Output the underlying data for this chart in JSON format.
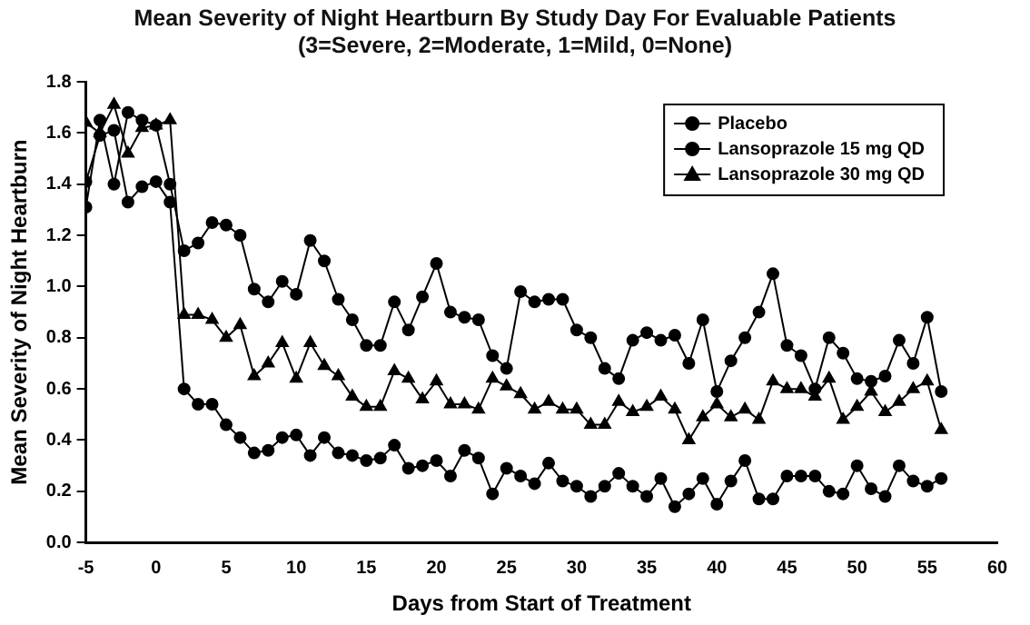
{
  "chart_data": {
    "type": "line",
    "title": "Mean Severity of Night Heartburn By Study Day For Evaluable Patients",
    "subtitle": "(3=Severe, 2=Moderate, 1=Mild, 0=None)",
    "xlabel": "Days from Start of Treatment",
    "ylabel": "Mean Severity of Night Heartburn",
    "x": [
      -5,
      -4,
      -3,
      -2,
      -1,
      0,
      1,
      2,
      3,
      4,
      5,
      6,
      7,
      8,
      9,
      10,
      11,
      12,
      13,
      14,
      15,
      16,
      17,
      18,
      19,
      20,
      21,
      22,
      23,
      24,
      25,
      26,
      27,
      28,
      29,
      30,
      31,
      32,
      33,
      34,
      35,
      36,
      37,
      38,
      39,
      40,
      41,
      42,
      43,
      44,
      45,
      46,
      47,
      48,
      49,
      50,
      51,
      52,
      53,
      54,
      55,
      56
    ],
    "series": [
      {
        "name": "Placebo",
        "color": "#000000",
        "marker": "circle",
        "values": [
          1.31,
          1.65,
          1.4,
          1.68,
          1.65,
          1.63,
          1.4,
          1.14,
          1.17,
          1.25,
          1.24,
          1.2,
          0.99,
          0.94,
          1.02,
          0.97,
          1.18,
          1.1,
          0.95,
          0.87,
          0.77,
          0.77,
          0.94,
          0.83,
          0.96,
          1.09,
          0.9,
          0.88,
          0.87,
          0.73,
          0.68,
          0.98,
          0.94,
          0.95,
          0.95,
          0.83,
          0.8,
          0.68,
          0.64,
          0.79,
          0.82,
          0.79,
          0.81,
          0.7,
          0.87,
          0.59,
          0.71,
          0.8,
          0.9,
          1.05,
          0.77,
          0.73,
          0.6,
          0.8,
          0.74,
          0.64,
          0.63,
          0.65,
          0.79,
          0.7,
          0.88,
          0.59
        ]
      },
      {
        "name": "Lansoprazole 15 mg QD",
        "color": "#000000",
        "marker": "circle",
        "values": [
          1.41,
          1.59,
          1.61,
          1.33,
          1.39,
          1.41,
          1.33,
          0.6,
          0.54,
          0.54,
          0.46,
          0.41,
          0.35,
          0.36,
          0.41,
          0.42,
          0.34,
          0.41,
          0.35,
          0.34,
          0.32,
          0.33,
          0.38,
          0.29,
          0.3,
          0.32,
          0.26,
          0.36,
          0.33,
          0.19,
          0.29,
          0.26,
          0.23,
          0.31,
          0.24,
          0.22,
          0.18,
          0.22,
          0.27,
          0.22,
          0.18,
          0.25,
          0.14,
          0.19,
          0.25,
          0.15,
          0.24,
          0.32,
          0.17,
          0.17,
          0.26,
          0.26,
          0.26,
          0.2,
          0.19,
          0.3,
          0.21,
          0.18,
          0.3,
          0.24,
          0.22,
          0.25
        ]
      },
      {
        "name": "Lansoprazole 30 mg QD",
        "color": "#000000",
        "marker": "triangle",
        "values": [
          1.64,
          1.6,
          1.71,
          1.52,
          1.62,
          1.63,
          1.65,
          0.89,
          0.89,
          0.87,
          0.8,
          0.85,
          0.65,
          0.7,
          0.78,
          0.64,
          0.78,
          0.69,
          0.65,
          0.57,
          0.53,
          0.53,
          0.67,
          0.64,
          0.56,
          0.63,
          0.54,
          0.54,
          0.52,
          0.64,
          0.61,
          0.58,
          0.52,
          0.55,
          0.52,
          0.52,
          0.46,
          0.46,
          0.55,
          0.51,
          0.53,
          0.57,
          0.52,
          0.4,
          0.49,
          0.54,
          0.49,
          0.52,
          0.48,
          0.63,
          0.6,
          0.6,
          0.57,
          0.64,
          0.48,
          0.53,
          0.59,
          0.51,
          0.55,
          0.6,
          0.63,
          0.44
        ]
      }
    ],
    "xlim": [
      -5,
      60
    ],
    "xticks": [
      -5,
      0,
      5,
      10,
      15,
      20,
      25,
      30,
      35,
      40,
      45,
      50,
      55,
      60
    ],
    "ylim": [
      0,
      1.8
    ],
    "yticks": [
      {
        "value": 0,
        "label": "0.0"
      },
      {
        "value": 0.2,
        "label": "0.2"
      },
      {
        "value": 0.4,
        "label": "0.4"
      },
      {
        "value": 0.6,
        "label": "0.6"
      },
      {
        "value": 0.8,
        "label": "0.8"
      },
      {
        "value": 1,
        "label": "1.0"
      },
      {
        "value": 1.2,
        "label": "1.2"
      },
      {
        "value": 1.4,
        "label": "1.4"
      },
      {
        "value": 1.6,
        "label": "1.6"
      },
      {
        "value": 1.8,
        "label": "1.8"
      }
    ],
    "grid": false,
    "legend": "top right",
    "line_style": "solid"
  }
}
